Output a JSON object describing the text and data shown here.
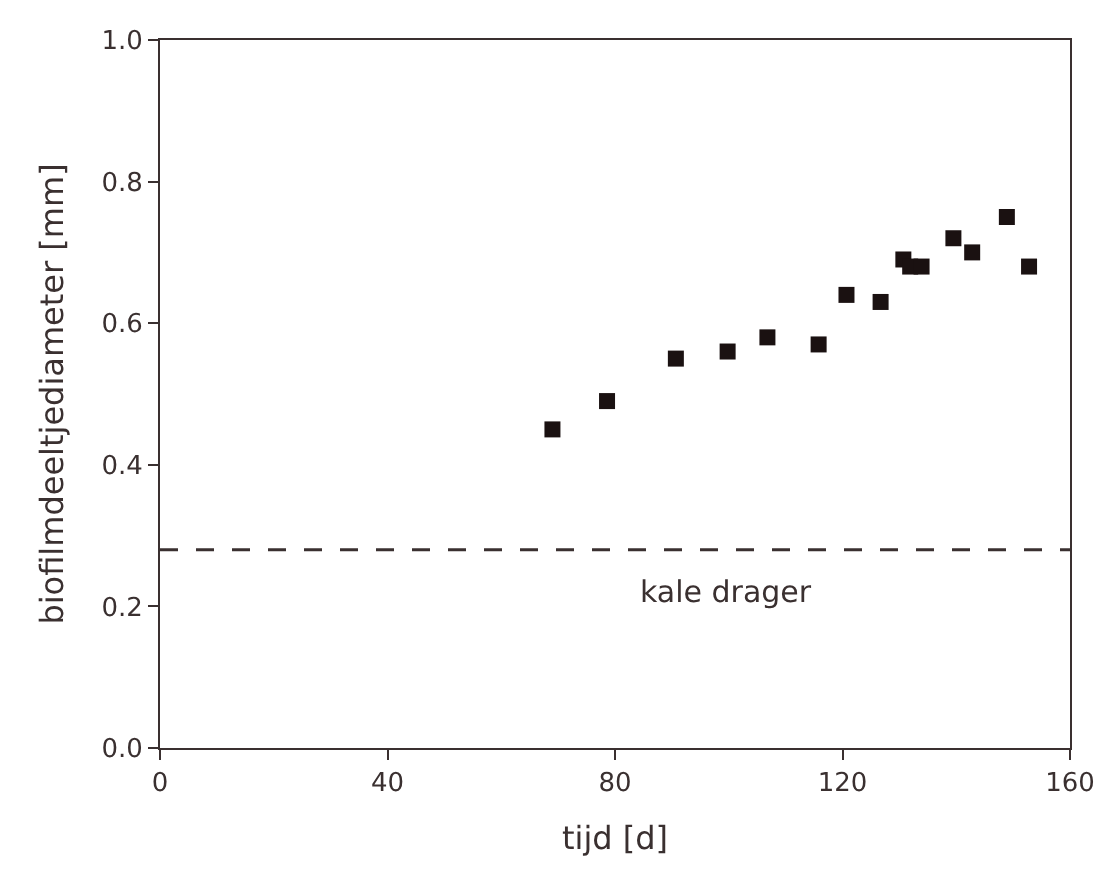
{
  "chart_data": {
    "type": "scatter",
    "xlabel": "tijd [d]",
    "ylabel": "biofilmdeeltjediameter [mm]",
    "x": [
      69,
      78.6,
      90.7,
      99.8,
      106.8,
      115.8,
      120.7,
      126.7,
      130.7,
      131.9,
      133.9,
      139.5,
      142.8,
      148.9,
      152.8
    ],
    "values": [
      0.45,
      0.49,
      0.55,
      0.56,
      0.58,
      0.57,
      0.64,
      0.63,
      0.69,
      0.68,
      0.68,
      0.72,
      0.7,
      0.75,
      0.68
    ],
    "color": "#1a1111",
    "marker": "square",
    "xlim": [
      0,
      160
    ],
    "xticks": [
      0,
      40,
      80,
      120,
      160
    ],
    "ylim": [
      0,
      1
    ],
    "yticks": [
      {
        "value": 0,
        "label": "0.0"
      },
      0.2,
      0.4,
      0.6,
      0.8,
      {
        "value": 1,
        "label": "1.0"
      }
    ],
    "ref_lines": [
      {
        "axis": "y",
        "value": 0.28,
        "label": "kale drager",
        "line_style": "dashed"
      }
    ],
    "grid": false,
    "legend": false
  }
}
